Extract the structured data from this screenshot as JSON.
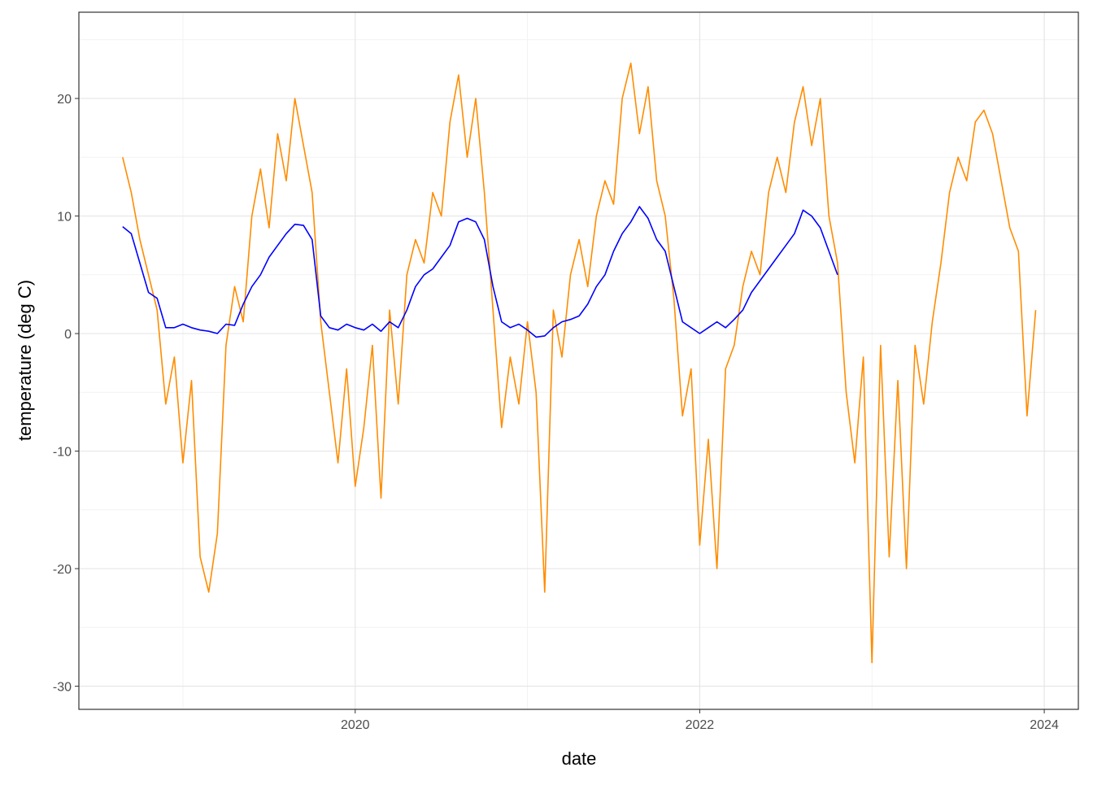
{
  "chart_data": {
    "type": "line",
    "x_label": "date",
    "y_label": "temperature (deg C)",
    "x": [
      2018.65,
      2018.7,
      2018.75,
      2018.8,
      2018.85,
      2018.9,
      2018.95,
      2019.0,
      2019.05,
      2019.1,
      2019.15,
      2019.2,
      2019.25,
      2019.3,
      2019.35,
      2019.4,
      2019.45,
      2019.5,
      2019.55,
      2019.6,
      2019.65,
      2019.7,
      2019.75,
      2019.8,
      2019.85,
      2019.9,
      2019.95,
      2020.0,
      2020.05,
      2020.1,
      2020.15,
      2020.2,
      2020.25,
      2020.3,
      2020.35,
      2020.4,
      2020.45,
      2020.5,
      2020.55,
      2020.6,
      2020.65,
      2020.7,
      2020.75,
      2020.8,
      2020.85,
      2020.9,
      2020.95,
      2021.0,
      2021.05,
      2021.1,
      2021.15,
      2021.2,
      2021.25,
      2021.3,
      2021.35,
      2021.4,
      2021.45,
      2021.5,
      2021.55,
      2021.6,
      2021.65,
      2021.7,
      2021.75,
      2021.8,
      2021.85,
      2021.9,
      2021.95,
      2022.0,
      2022.05,
      2022.1,
      2022.15,
      2022.2,
      2022.25,
      2022.3,
      2022.35,
      2022.4,
      2022.45,
      2022.5,
      2022.55,
      2022.6,
      2022.65,
      2022.7,
      2022.75,
      2022.8,
      2022.85,
      2022.9,
      2022.95,
      2023.0,
      2023.05,
      2023.1,
      2023.15,
      2023.2,
      2023.25,
      2023.3,
      2023.35,
      2023.4,
      2023.45,
      2023.5,
      2023.55,
      2023.6,
      2023.65,
      2023.7,
      2023.75,
      2023.8,
      2023.85,
      2023.9,
      2023.95
    ],
    "series": [
      {
        "color": "#ff8c00",
        "values": [
          15,
          12,
          8,
          5,
          2,
          -6,
          -2,
          -11,
          -4,
          -19,
          -22,
          -17,
          -1,
          4,
          1,
          10,
          14,
          9,
          17,
          13,
          20,
          16,
          12,
          1,
          -5,
          -11,
          -3,
          -13,
          -8,
          -1,
          -14,
          2,
          -6,
          5,
          8,
          6,
          12,
          10,
          18,
          22,
          15,
          20,
          12,
          2,
          -8,
          -2,
          -6,
          1,
          -5,
          -22,
          2,
          -2,
          5,
          8,
          4,
          10,
          13,
          11,
          20,
          23,
          17,
          21,
          13,
          10,
          3,
          -7,
          -3,
          -18,
          -9,
          -20,
          -3,
          -1,
          4,
          7,
          5,
          12,
          15,
          12,
          18,
          21,
          16,
          20,
          10,
          6,
          -5,
          -11,
          -2,
          -28,
          -1,
          -19,
          -4,
          -20,
          -1,
          -6,
          1,
          6,
          12,
          15,
          13,
          18,
          19,
          17,
          13,
          9,
          7,
          -7,
          2
        ]
      },
      {
        "color": "#0000ff",
        "values": [
          9.1,
          8.5,
          6,
          3.5,
          3,
          0.5,
          0.5,
          0.8,
          0.5,
          0.3,
          0.2,
          0,
          0.8,
          0.7,
          2.5,
          4,
          5,
          6.5,
          7.5,
          8.5,
          9.3,
          9.2,
          8,
          1.5,
          0.5,
          0.3,
          0.8,
          0.5,
          0.3,
          0.8,
          0.2,
          1,
          0.5,
          2,
          4,
          5,
          5.5,
          6.5,
          7.5,
          9.5,
          9.8,
          9.5,
          8,
          4,
          1,
          0.5,
          0.8,
          0.3,
          -0.3,
          -0.2,
          0.5,
          1,
          1.2,
          1.5,
          2.5,
          4,
          5,
          7,
          8.5,
          9.5,
          10.8,
          9.8,
          8,
          7,
          4,
          1,
          0.5,
          0,
          0.5,
          1,
          0.5,
          1.2,
          2,
          3.5,
          4.5,
          5.5,
          6.5,
          7.5,
          8.5,
          10.5,
          10,
          9,
          7,
          5,
          null,
          null,
          null,
          null,
          null,
          null,
          null,
          null,
          null,
          null,
          null,
          null,
          null,
          null,
          null,
          null,
          null,
          null,
          null,
          null,
          null,
          null,
          null
        ]
      }
    ],
    "xlim": [
      2018.396,
      2024.198
    ],
    "xticks": [
      2020,
      2022,
      2024
    ],
    "x_minor_ticks": [
      2019,
      2021,
      2023
    ],
    "ylim": [
      -31.97,
      27.34
    ],
    "yticks": [
      -30,
      -20,
      -10,
      0,
      10,
      20
    ],
    "y_minor_ticks": [
      -25,
      -15,
      -5,
      5,
      15,
      25
    ],
    "grid": true
  }
}
